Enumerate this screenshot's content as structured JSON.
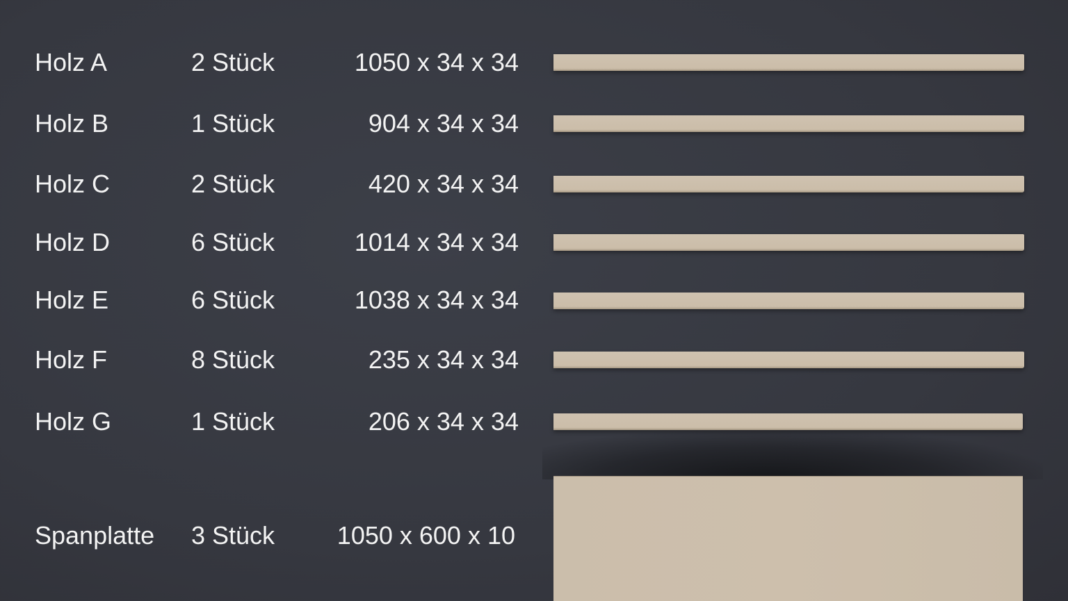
{
  "items": [
    {
      "name": "Holz A",
      "count": "2 Stück",
      "dims": "1050 x 34 x 34"
    },
    {
      "name": "Holz B",
      "count": "1 Stück",
      "dims": "904 x 34 x 34"
    },
    {
      "name": "Holz C",
      "count": "2 Stück",
      "dims": "420 x 34 x 34"
    },
    {
      "name": "Holz D",
      "count": "6 Stück",
      "dims": "1014 x 34 x 34"
    },
    {
      "name": "Holz E",
      "count": "6 Stück",
      "dims": "1038 x 34 x 34"
    },
    {
      "name": "Holz F",
      "count": "8 Stück",
      "dims": "235 x 34 x 34"
    },
    {
      "name": "Holz G",
      "count": "1 Stück",
      "dims": "206 x 34 x 34"
    },
    {
      "name": "Spanplatte",
      "count": "3 Stück",
      "dims": "1050 x 600 x 10"
    }
  ],
  "colors": {
    "background": "#373941",
    "wood": "#cdbfac",
    "text": "#f3f3f3"
  }
}
